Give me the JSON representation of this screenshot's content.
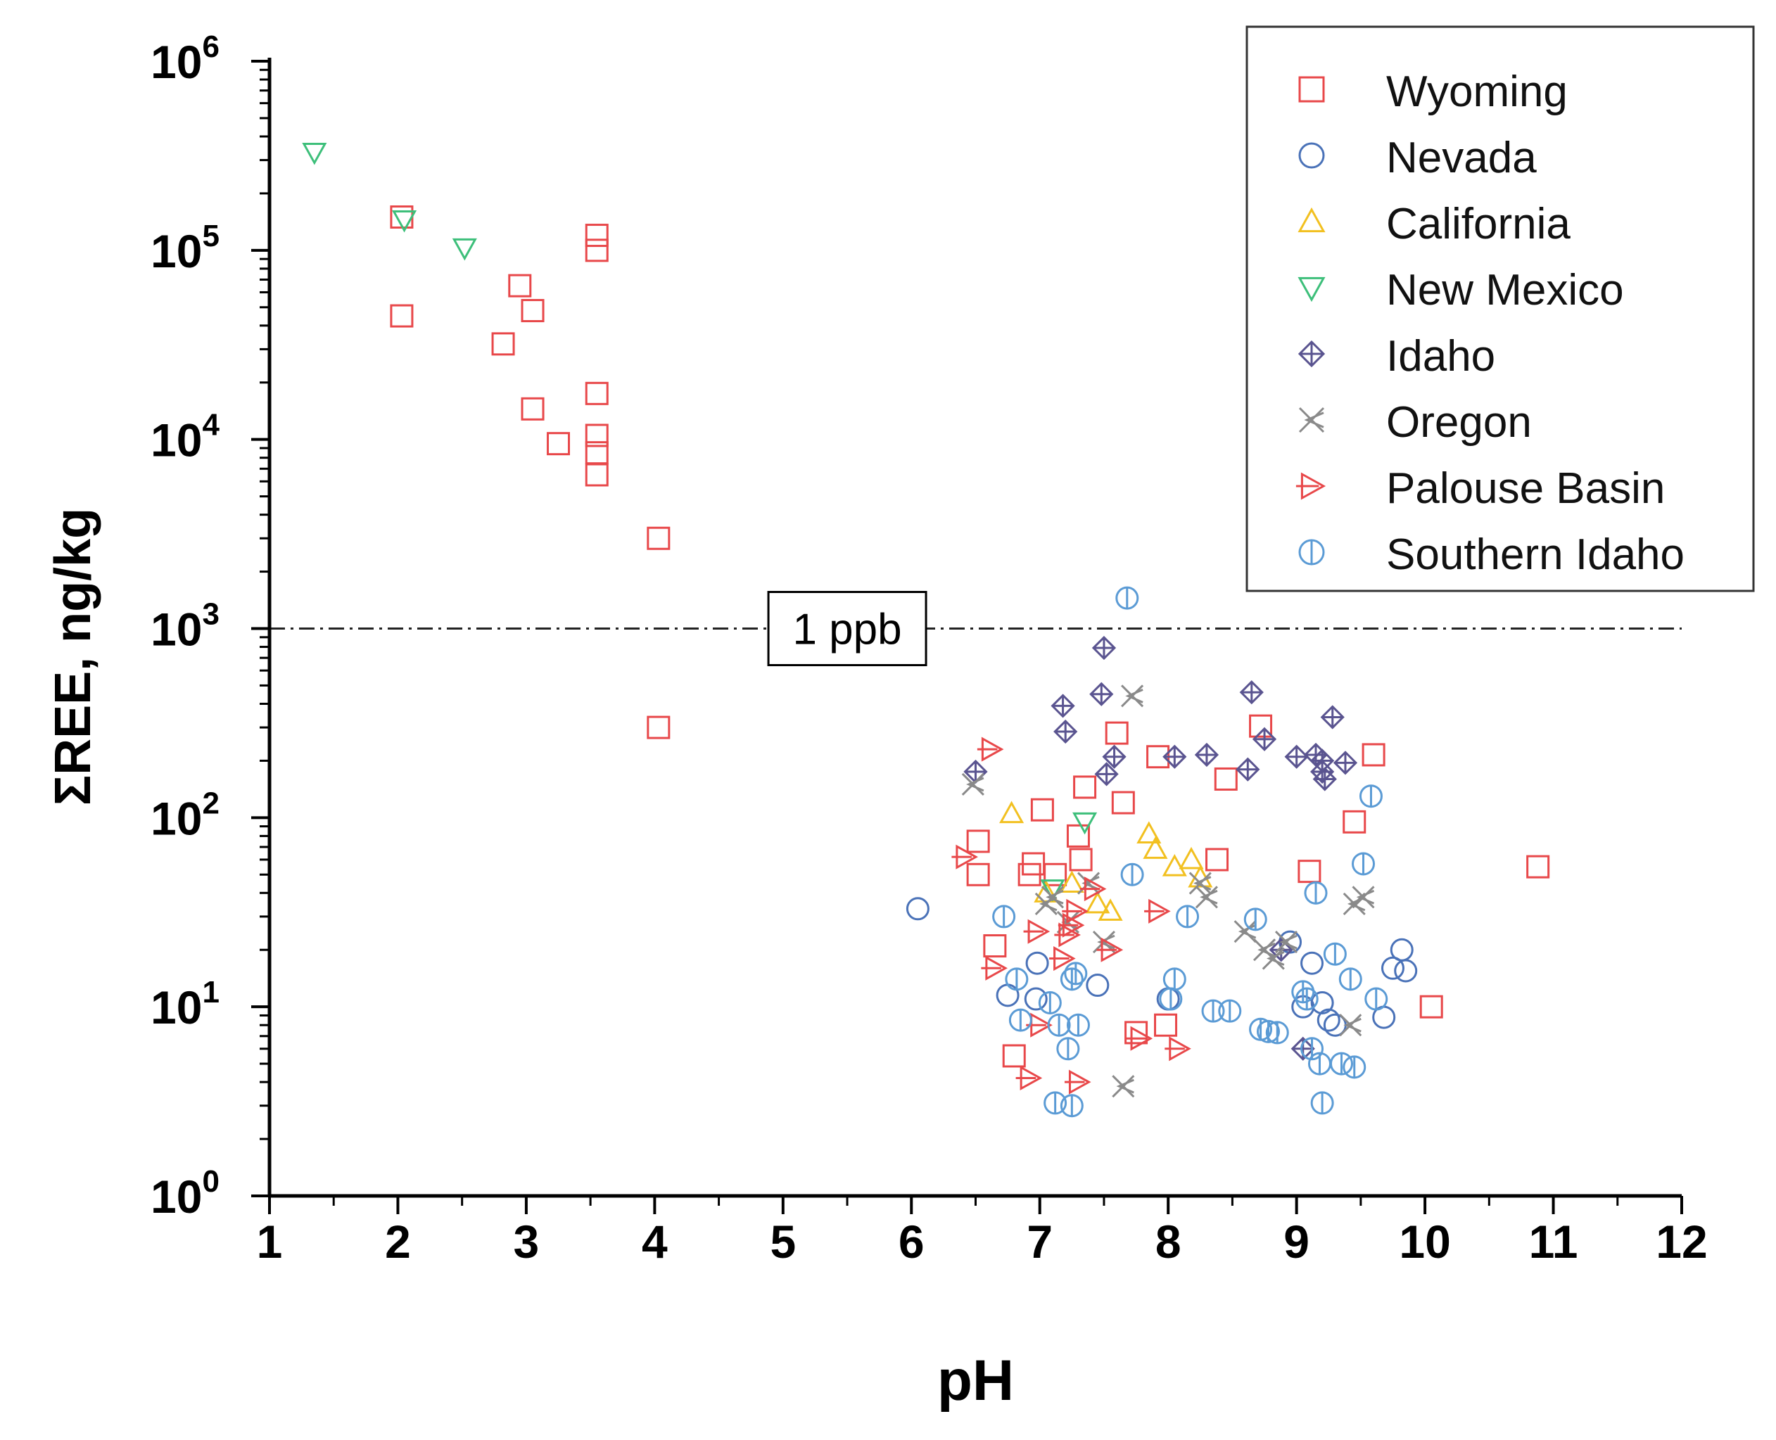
{
  "chart_data": {
    "type": "scatter",
    "title": "",
    "xlabel": "pH",
    "ylabel": "ΣREE, ng/kg",
    "xlim": [
      1,
      12
    ],
    "ylim": [
      1,
      1000000
    ],
    "yscale": "log",
    "xticks": [
      "1",
      "2",
      "3",
      "4",
      "5",
      "6",
      "7",
      "8",
      "9",
      "10",
      "11",
      "12"
    ],
    "yticks": [
      {
        "base": "10",
        "exp": "0"
      },
      {
        "base": "10",
        "exp": "1"
      },
      {
        "base": "10",
        "exp": "2"
      },
      {
        "base": "10",
        "exp": "3"
      },
      {
        "base": "10",
        "exp": "4"
      },
      {
        "base": "10",
        "exp": "5"
      },
      {
        "base": "10",
        "exp": "6"
      }
    ],
    "legend_position": "top-right",
    "annotation": {
      "label": "1 ppb",
      "y": 1000,
      "x": 5.5
    },
    "series": [
      {
        "name": "Wyoming",
        "marker": "square",
        "color": "#e8484a",
        "points": [
          [
            2.03,
            150000
          ],
          [
            2.03,
            45000
          ],
          [
            2.95,
            65000
          ],
          [
            3.05,
            48000
          ],
          [
            2.82,
            32000
          ],
          [
            3.05,
            14500
          ],
          [
            3.25,
            9500
          ],
          [
            3.55,
            120000
          ],
          [
            3.55,
            100000
          ],
          [
            3.55,
            17500
          ],
          [
            3.55,
            10500
          ],
          [
            3.55,
            8500
          ],
          [
            3.55,
            6500
          ],
          [
            4.03,
            3000
          ],
          [
            4.03,
            300
          ],
          [
            6.52,
            75
          ],
          [
            6.52,
            50
          ],
          [
            6.65,
            21
          ],
          [
            6.8,
            5.5
          ],
          [
            6.92,
            50
          ],
          [
            6.95,
            57
          ],
          [
            7.02,
            110
          ],
          [
            7.12,
            50
          ],
          [
            7.3,
            80
          ],
          [
            7.32,
            60
          ],
          [
            7.35,
            145
          ],
          [
            7.6,
            280
          ],
          [
            7.65,
            120
          ],
          [
            7.75,
            7.3
          ],
          [
            7.92,
            210
          ],
          [
            7.98,
            8
          ],
          [
            8.38,
            60
          ],
          [
            8.45,
            160
          ],
          [
            8.72,
            305
          ],
          [
            9.1,
            52
          ],
          [
            9.45,
            95
          ],
          [
            9.6,
            215
          ],
          [
            10.05,
            10
          ],
          [
            10.88,
            55
          ]
        ]
      },
      {
        "name": "Nevada",
        "marker": "circle",
        "color": "#4a72b8",
        "points": [
          [
            6.05,
            33
          ],
          [
            6.75,
            11.5
          ],
          [
            6.97,
            11
          ],
          [
            6.98,
            17
          ],
          [
            7.45,
            13
          ],
          [
            8.0,
            11
          ],
          [
            8.95,
            22
          ],
          [
            9.05,
            10
          ],
          [
            9.12,
            17
          ],
          [
            9.2,
            10.5
          ],
          [
            9.25,
            8.5
          ],
          [
            9.3,
            8
          ],
          [
            9.68,
            8.8
          ],
          [
            9.75,
            16
          ],
          [
            9.82,
            20
          ],
          [
            9.85,
            15.5
          ]
        ]
      },
      {
        "name": "California",
        "marker": "triangle-up",
        "color": "#f2c020",
        "points": [
          [
            6.78,
            105
          ],
          [
            7.05,
            40
          ],
          [
            7.25,
            45
          ],
          [
            7.45,
            35
          ],
          [
            7.55,
            32
          ],
          [
            7.85,
            82
          ],
          [
            7.9,
            68
          ],
          [
            8.05,
            55
          ],
          [
            8.18,
            60
          ],
          [
            8.25,
            48
          ]
        ]
      },
      {
        "name": "New Mexico",
        "marker": "triangle-down",
        "color": "#3dbf7a",
        "points": [
          [
            1.35,
            330000
          ],
          [
            2.05,
            145000
          ],
          [
            2.52,
            103000
          ],
          [
            7.35,
            95
          ],
          [
            7.1,
            42
          ]
        ]
      },
      {
        "name": "Idaho",
        "marker": "diamond-cross",
        "color": "#5a5490",
        "points": [
          [
            6.5,
            175
          ],
          [
            7.18,
            390
          ],
          [
            7.2,
            285
          ],
          [
            7.48,
            450
          ],
          [
            7.5,
            790
          ],
          [
            7.52,
            170
          ],
          [
            7.58,
            210
          ],
          [
            8.05,
            210
          ],
          [
            8.3,
            215
          ],
          [
            8.65,
            460
          ],
          [
            8.75,
            260
          ],
          [
            8.62,
            180
          ],
          [
            9.0,
            210
          ],
          [
            9.15,
            215
          ],
          [
            9.2,
            200
          ],
          [
            9.22,
            160
          ],
          [
            9.28,
            340
          ],
          [
            9.38,
            195
          ],
          [
            9.2,
            175
          ],
          [
            8.88,
            20
          ],
          [
            9.05,
            6
          ]
        ]
      },
      {
        "name": "Oregon",
        "marker": "x-arrow",
        "color": "#8a8a8a",
        "points": [
          [
            6.48,
            150
          ],
          [
            7.05,
            35
          ],
          [
            7.1,
            38
          ],
          [
            7.22,
            28
          ],
          [
            7.38,
            45
          ],
          [
            7.5,
            22
          ],
          [
            7.72,
            440
          ],
          [
            7.65,
            3.8
          ],
          [
            8.25,
            45
          ],
          [
            8.3,
            38
          ],
          [
            8.6,
            25
          ],
          [
            8.75,
            20
          ],
          [
            8.82,
            18
          ],
          [
            8.92,
            22
          ],
          [
            9.42,
            8
          ],
          [
            9.45,
            35
          ],
          [
            9.52,
            38
          ]
        ]
      },
      {
        "name": "Palouse Basin",
        "marker": "triangle-right",
        "color": "#e8484a",
        "points": [
          [
            6.42,
            62
          ],
          [
            6.62,
            230
          ],
          [
            6.65,
            16
          ],
          [
            6.98,
            25
          ],
          [
            7.0,
            8
          ],
          [
            7.18,
            18
          ],
          [
            7.22,
            24
          ],
          [
            7.25,
            27
          ],
          [
            7.28,
            32
          ],
          [
            7.3,
            4
          ],
          [
            7.42,
            42
          ],
          [
            7.55,
            20
          ],
          [
            7.92,
            32
          ],
          [
            7.78,
            6.8
          ],
          [
            8.08,
            6
          ],
          [
            6.92,
            4.2
          ]
        ]
      },
      {
        "name": "Southern Idaho",
        "marker": "circle-bar",
        "color": "#5b9bd5",
        "points": [
          [
            7.68,
            1450
          ],
          [
            6.72,
            30
          ],
          [
            6.82,
            14
          ],
          [
            6.85,
            8.5
          ],
          [
            7.08,
            10.5
          ],
          [
            7.15,
            8
          ],
          [
            7.22,
            6
          ],
          [
            7.25,
            14
          ],
          [
            7.28,
            15
          ],
          [
            7.3,
            8
          ],
          [
            7.12,
            3.1
          ],
          [
            7.25,
            3.0
          ],
          [
            7.72,
            50
          ],
          [
            8.05,
            14
          ],
          [
            8.02,
            11
          ],
          [
            8.15,
            30
          ],
          [
            8.35,
            9.5
          ],
          [
            8.48,
            9.5
          ],
          [
            8.68,
            29
          ],
          [
            8.72,
            7.6
          ],
          [
            8.78,
            7.4
          ],
          [
            8.85,
            7.3
          ],
          [
            9.05,
            12
          ],
          [
            9.08,
            11
          ],
          [
            9.12,
            6
          ],
          [
            9.18,
            5
          ],
          [
            9.2,
            3.1
          ],
          [
            9.3,
            19
          ],
          [
            9.35,
            5
          ],
          [
            9.42,
            14
          ],
          [
            9.45,
            4.8
          ],
          [
            9.52,
            57
          ],
          [
            9.58,
            130
          ],
          [
            9.62,
            11
          ],
          [
            9.15,
            40
          ]
        ]
      }
    ]
  }
}
